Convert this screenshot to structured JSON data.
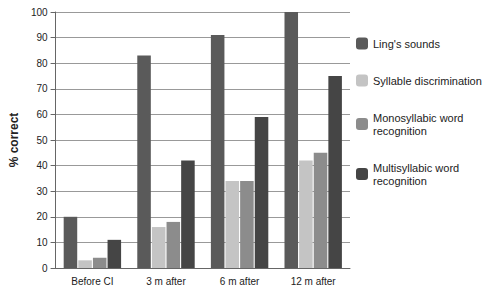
{
  "chart_data": {
    "type": "bar",
    "y_label": "% correct",
    "categories": [
      "Before CI",
      "3 m after",
      "6 m after",
      "12 m after"
    ],
    "series": [
      {
        "name": "Ling's sounds",
        "color": "#5a5a5a",
        "values": [
          20,
          83,
          91,
          100
        ]
      },
      {
        "name": "Syllable discrimination",
        "color": "#c4c4c4",
        "values": [
          3,
          16,
          34,
          42
        ]
      },
      {
        "name": "Monosyllabic word recognition",
        "color": "#8c8c8c",
        "values": [
          4,
          18,
          34,
          45
        ]
      },
      {
        "name": "Multisyllabic word recognition",
        "color": "#454545",
        "values": [
          11,
          42,
          59,
          75
        ]
      }
    ],
    "ylim": [
      0,
      100
    ],
    "yticks": [
      0,
      10,
      20,
      30,
      40,
      50,
      60,
      70,
      80,
      90,
      100
    ],
    "grid": true,
    "legend": "right"
  }
}
